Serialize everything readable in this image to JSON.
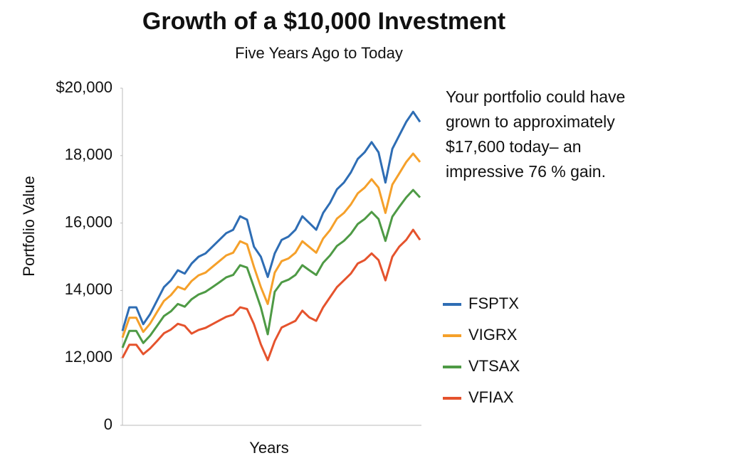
{
  "chart_data": {
    "type": "line",
    "title": "Growth of a $10,000 Investment",
    "subtitle": "Five Years Ago to Today",
    "x_label": "Years",
    "y_label": "Portfolio Value",
    "annotation": [
      "Your portfolio could have",
      "grown to approximately",
      "$17,600 today– an",
      "impressive 76 % gain."
    ],
    "ylim": [
      0,
      20000
    ],
    "yticks": [
      0,
      {
        "value": 12000,
        "label": "12,000"
      },
      {
        "value": 14000,
        "label": "14,000"
      },
      {
        "value": 16000,
        "label": "16,000"
      },
      {
        "value": 18000,
        "label": "18,000"
      },
      {
        "value": 20000,
        "label": "$20,000"
      }
    ],
    "series": [
      {
        "name": "FSPTX",
        "color": "#2e6db4",
        "values": [
          12800,
          13500,
          13500,
          13000,
          13300,
          13700,
          14100,
          14300,
          14600,
          14500,
          14800,
          15000,
          15100,
          15300,
          15500,
          15700,
          15800,
          16200,
          16100,
          15300,
          15000,
          14400,
          15100,
          15500,
          15600,
          15800,
          16200,
          16000,
          15800,
          16300,
          16600,
          17000,
          17200,
          17500,
          17900,
          18100,
          18400,
          18100,
          17200,
          18200,
          18600,
          19000,
          19300,
          19000
        ]
      },
      {
        "name": "VIGRX",
        "color": "#f5a02a",
        "values": [
          12600,
          13190,
          13190,
          12770,
          13020,
          13360,
          13690,
          13860,
          14110,
          14030,
          14280,
          14450,
          14530,
          14700,
          14870,
          15040,
          15120,
          15460,
          15370,
          14700,
          14100,
          13600,
          14530,
          14870,
          14950,
          15120,
          15460,
          15290,
          15120,
          15540,
          15790,
          16130,
          16300,
          16550,
          16880,
          17050,
          17300,
          17050,
          16300,
          17140,
          17470,
          17810,
          18060,
          17810
        ]
      },
      {
        "name": "VTSAX",
        "color": "#4e9a45",
        "values": [
          12300,
          12800,
          12800,
          12440,
          12660,
          12950,
          13240,
          13380,
          13600,
          13520,
          13740,
          13880,
          13960,
          14100,
          14240,
          14390,
          14460,
          14750,
          14680,
          14100,
          13500,
          12700,
          13960,
          14240,
          14320,
          14460,
          14750,
          14600,
          14460,
          14820,
          15040,
          15320,
          15470,
          15680,
          15970,
          16120,
          16330,
          16120,
          15470,
          16190,
          16480,
          16760,
          16980,
          16760
        ]
      },
      {
        "name": "VFIAX",
        "color": "#e5532d",
        "values": [
          12000,
          12390,
          12390,
          12110,
          12280,
          12500,
          12730,
          12840,
          13010,
          12950,
          12720,
          12830,
          12890,
          13000,
          13110,
          13220,
          13280,
          13500,
          13450,
          13000,
          12400,
          11600,
          12500,
          12900,
          13000,
          13100,
          13400,
          13200,
          13100,
          13500,
          13800,
          14100,
          14300,
          14500,
          14800,
          14900,
          15100,
          14900,
          14300,
          15000,
          15300,
          15500,
          15800,
          15500
        ]
      }
    ]
  }
}
